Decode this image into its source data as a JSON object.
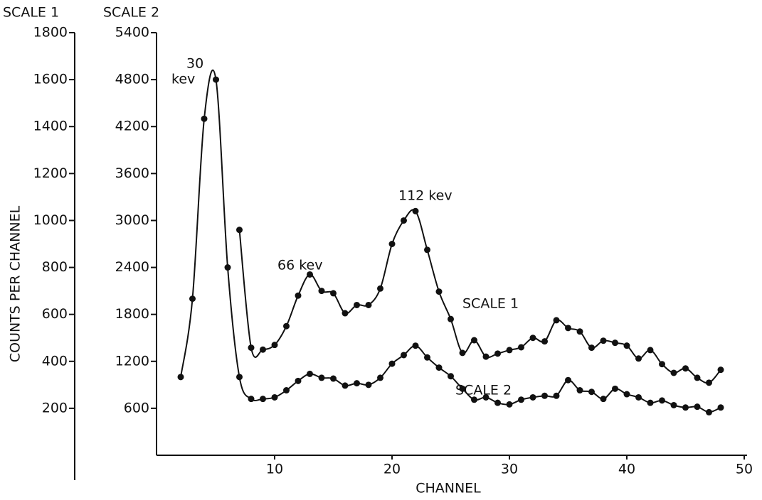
{
  "chart_data": {
    "type": "line",
    "y_header": "SCALE 1",
    "y2_header": "SCALE 2",
    "ylabel": "COUNTS PER CHANNEL",
    "xlabel": "CHANNEL",
    "annotations": [
      "30",
      "kev",
      "66 kev",
      "112 kev"
    ],
    "xlim": [
      0,
      50
    ],
    "xticks": [
      10,
      20,
      30,
      40,
      50
    ],
    "ylim": [
      0,
      1800
    ],
    "yticks": [
      200,
      400,
      600,
      800,
      1000,
      1200,
      1400,
      1600,
      1800
    ],
    "y2lim": [
      0,
      5400
    ],
    "y2ticks": [
      600,
      1200,
      1800,
      2400,
      3000,
      3600,
      4200,
      4800,
      5400
    ],
    "series": [
      {
        "name": "SCALE 1",
        "color": "#111111",
        "axis": "y",
        "x": [
          7,
          8,
          9,
          10,
          11,
          12,
          13,
          14,
          15,
          16,
          17,
          18,
          19,
          20,
          21,
          22,
          23,
          24,
          25,
          26,
          27,
          28,
          29,
          30,
          31,
          32,
          33,
          34,
          35,
          36,
          37,
          38,
          39,
          40,
          41,
          42,
          43,
          44,
          45,
          46,
          47,
          48
        ],
        "values": [
          960,
          458,
          450,
          470,
          550,
          680,
          770,
          700,
          690,
          605,
          640,
          640,
          710,
          900,
          1000,
          1040,
          875,
          697,
          580,
          436,
          490,
          420,
          433,
          448,
          460,
          500,
          485,
          575,
          542,
          527,
          458,
          488,
          479,
          467,
          412,
          448,
          388,
          351,
          370,
          330,
          309,
          364
        ]
      },
      {
        "name": "SCALE 2",
        "color": "#111111",
        "axis": "y2",
        "x": [
          2,
          3,
          4,
          5,
          6,
          7,
          8,
          9,
          10,
          11,
          12,
          13,
          14,
          15,
          16,
          17,
          18,
          19,
          20,
          21,
          22,
          23,
          24,
          25,
          26,
          27,
          28,
          29,
          30,
          31,
          32,
          33,
          34,
          35,
          36,
          37,
          38,
          39,
          40,
          41,
          42,
          43,
          44,
          45,
          46,
          47,
          48
        ],
        "values": [
          1000,
          2000,
          4300,
          4800,
          2400,
          1000,
          720,
          720,
          740,
          830,
          950,
          1040,
          990,
          980,
          890,
          920,
          900,
          990,
          1170,
          1280,
          1400,
          1250,
          1120,
          1010,
          850,
          710,
          740,
          670,
          650,
          710,
          740,
          760,
          760,
          960,
          830,
          810,
          720,
          850,
          780,
          740,
          670,
          700,
          640,
          610,
          620,
          550,
          610
        ]
      }
    ]
  }
}
